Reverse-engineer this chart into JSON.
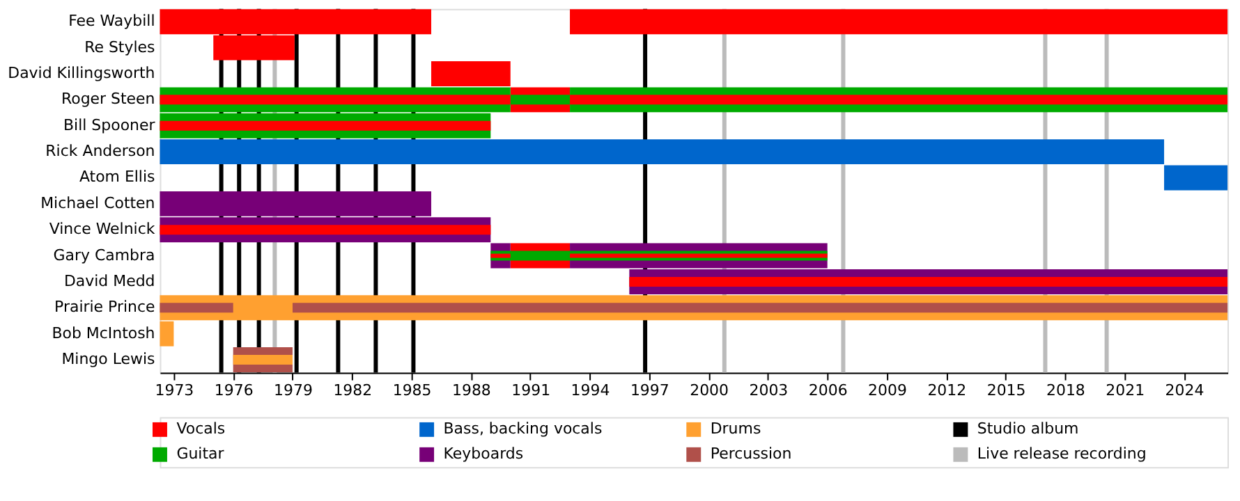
{
  "chart_data": {
    "type": "bar",
    "orientation": "horizontal",
    "legend": "bottom",
    "categories": [
      "Fee Waybill",
      "Re Styles",
      "David Killingsworth",
      "Roger Steen",
      "Bill Spooner",
      "Rick Anderson",
      "Atom Ellis",
      "Michael Cotten",
      "Vince Welnick",
      "Gary Cambra",
      "David Medd",
      "Prairie Prince",
      "Bob McIntosh",
      "Mingo Lewis"
    ],
    "xlim": [
      1972.3,
      2026.2
    ],
    "xticks": [
      1973,
      1976,
      1979,
      1982,
      1985,
      1988,
      1991,
      1994,
      1997,
      2000,
      2003,
      2006,
      2009,
      2012,
      2015,
      2018,
      2021,
      2024
    ],
    "series": [
      {
        "name": "Vocals",
        "color": "#ff0000",
        "base": [
          1972.3,
          1975,
          1986,
          1990,
          null,
          null,
          null,
          null,
          null,
          1990,
          null,
          null,
          null,
          null
        ],
        "values": [
          13.7,
          4.1,
          4,
          3,
          null,
          null,
          null,
          null,
          null,
          3,
          null,
          null,
          null,
          null
        ]
      },
      {
        "color": "#ff0000",
        "base": [
          1993,
          null,
          null,
          null,
          null,
          null,
          null,
          null,
          null,
          null,
          null,
          null,
          null,
          null
        ],
        "values": [
          33.2,
          null,
          null,
          null,
          null,
          null,
          null,
          null,
          null,
          null,
          null,
          null,
          null,
          null
        ]
      },
      {
        "name": "Guitar",
        "color": "#00aa00",
        "base": [
          null,
          null,
          null,
          1972.3,
          1972.3,
          null,
          null,
          null,
          null,
          null,
          null,
          null,
          null,
          null
        ],
        "values": [
          null,
          null,
          null,
          17.7,
          16.7,
          null,
          null,
          null,
          null,
          null,
          null,
          null,
          null,
          null
        ]
      },
      {
        "color": "#00aa00",
        "base": [
          null,
          null,
          null,
          1993,
          null,
          null,
          null,
          null,
          null,
          null,
          null,
          null,
          null,
          null
        ],
        "values": [
          null,
          null,
          null,
          33.2,
          null,
          null,
          null,
          null,
          null,
          null,
          null,
          null,
          null,
          null
        ]
      },
      {
        "name": "Bass, backing vocals",
        "color": "#0066cc",
        "base": [
          null,
          null,
          null,
          null,
          null,
          1972.3,
          2023,
          null,
          null,
          null,
          null,
          null,
          null,
          null
        ],
        "values": [
          null,
          null,
          null,
          null,
          null,
          50.7,
          3.2,
          null,
          null,
          null,
          null,
          null,
          null,
          null
        ]
      },
      {
        "name": "Keyboards",
        "color": "#770077",
        "base": [
          null,
          null,
          null,
          null,
          null,
          null,
          null,
          1972.3,
          1972.3,
          1989,
          1996,
          null,
          null,
          null
        ],
        "values": [
          null,
          null,
          null,
          null,
          null,
          null,
          null,
          13.7,
          16.7,
          1,
          30.2,
          null,
          null,
          null
        ]
      },
      {
        "color": "#770077",
        "base": [
          null,
          null,
          null,
          null,
          null,
          null,
          null,
          null,
          null,
          1993,
          null,
          null,
          null,
          null
        ],
        "values": [
          null,
          null,
          null,
          null,
          null,
          null,
          null,
          null,
          null,
          13,
          null,
          null,
          null,
          null
        ]
      },
      {
        "name": "Drums",
        "color": "#ffa030",
        "base": [
          null,
          null,
          null,
          null,
          null,
          null,
          null,
          null,
          null,
          null,
          null,
          1972.3,
          1972.3,
          null
        ],
        "values": [
          null,
          null,
          null,
          null,
          null,
          null,
          null,
          null,
          null,
          null,
          null,
          53.9,
          0.7,
          null
        ]
      },
      {
        "name": "Percussion",
        "color": "#b0504a",
        "base": [
          null,
          null,
          null,
          null,
          null,
          null,
          null,
          null,
          null,
          null,
          null,
          null,
          null,
          1976
        ],
        "values": [
          null,
          null,
          null,
          null,
          null,
          null,
          null,
          null,
          null,
          null,
          null,
          null,
          null,
          3
        ]
      },
      {
        "color": "#00aa00",
        "base": [
          null,
          null,
          null,
          1990,
          null,
          null,
          null,
          null,
          null,
          1989,
          null,
          null,
          null,
          null
        ],
        "values": [
          null,
          null,
          null,
          3,
          null,
          null,
          null,
          null,
          null,
          17,
          null,
          null,
          null,
          null
        ]
      },
      {
        "color": "#ff0000",
        "base": [
          null,
          null,
          null,
          1972.3,
          1972.3,
          null,
          null,
          null,
          1972.3,
          1989,
          1996,
          null,
          null,
          null
        ],
        "values": [
          null,
          null,
          null,
          17.7,
          16.7,
          null,
          null,
          null,
          16.7,
          1,
          30.2,
          null,
          null,
          null
        ]
      },
      {
        "color": "#ff0000",
        "base": [
          null,
          null,
          null,
          1993,
          null,
          null,
          null,
          null,
          null,
          1993,
          null,
          null,
          null,
          null
        ],
        "values": [
          null,
          null,
          null,
          33.2,
          null,
          null,
          null,
          null,
          null,
          13,
          null,
          null,
          null,
          null
        ]
      },
      {
        "color": "#b0504a",
        "base": [
          null,
          null,
          null,
          null,
          null,
          null,
          null,
          null,
          null,
          null,
          null,
          1972.3,
          null,
          null
        ],
        "values": [
          null,
          null,
          null,
          null,
          null,
          null,
          null,
          null,
          null,
          null,
          null,
          3.7,
          null,
          null
        ]
      },
      {
        "color": "#b0504a",
        "base": [
          null,
          null,
          null,
          null,
          null,
          null,
          null,
          null,
          null,
          null,
          null,
          1979,
          null,
          null
        ],
        "values": [
          null,
          null,
          null,
          null,
          null,
          null,
          null,
          null,
          null,
          null,
          null,
          47.2,
          null,
          null
        ]
      },
      {
        "color": "#ffa030",
        "base": [
          null,
          null,
          null,
          null,
          null,
          null,
          null,
          null,
          null,
          null,
          null,
          null,
          null,
          1976
        ],
        "values": [
          null,
          null,
          null,
          null,
          null,
          null,
          null,
          null,
          null,
          null,
          null,
          null,
          null,
          3
        ]
      }
    ],
    "ref_lines": [
      {
        "axis": "x",
        "value": 1975.4,
        "label": "Studio album",
        "color": "#000000"
      },
      {
        "axis": "x",
        "value": 1976.3,
        "color": "#000000"
      },
      {
        "axis": "x",
        "value": 1977.3,
        "color": "#000000"
      },
      {
        "axis": "x",
        "value": 1979.2,
        "color": "#000000"
      },
      {
        "axis": "x",
        "value": 1981.3,
        "color": "#000000"
      },
      {
        "axis": "x",
        "value": 1983.2,
        "color": "#000000"
      },
      {
        "axis": "x",
        "value": 1985.1,
        "color": "#000000"
      },
      {
        "axis": "x",
        "value": 1996.8,
        "color": "#000000"
      },
      {
        "axis": "x",
        "value": 1978.1,
        "label": "Live release recording",
        "color": "#bbbbbb"
      },
      {
        "axis": "x",
        "value": 2000.8,
        "color": "#bbbbbb"
      },
      {
        "axis": "x",
        "value": 2006.8,
        "color": "#bbbbbb"
      },
      {
        "axis": "x",
        "value": 2017.0,
        "color": "#bbbbbb"
      },
      {
        "axis": "x",
        "value": 2020.1,
        "color": "#bbbbbb"
      }
    ]
  }
}
